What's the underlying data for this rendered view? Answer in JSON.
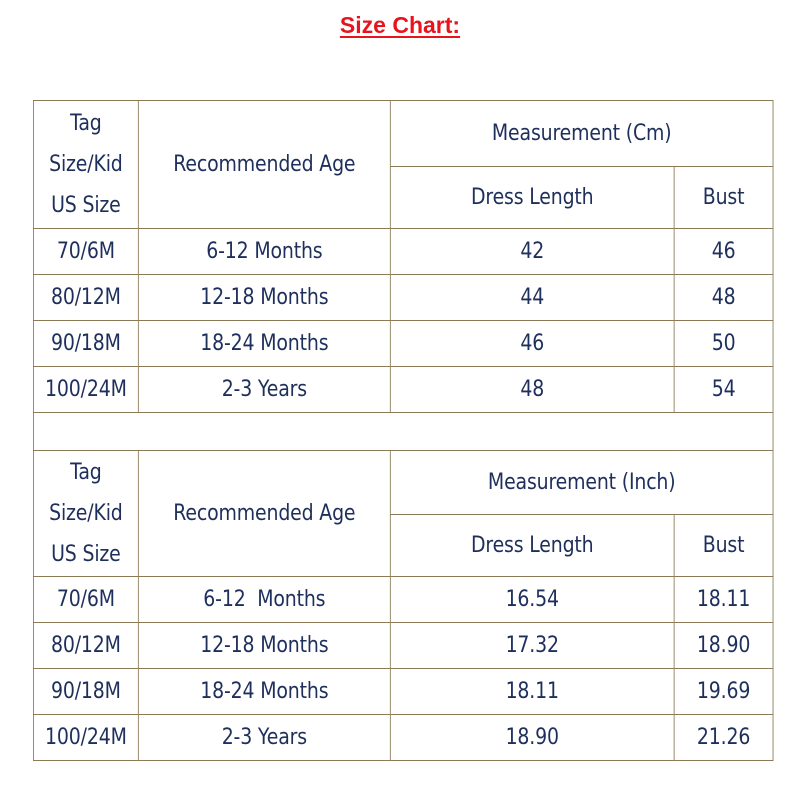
{
  "title": "Size Chart:",
  "colors": {
    "title": "#e8141c",
    "text": "#1f2f5c",
    "border": "#8b7a55"
  },
  "cm_table": {
    "header": {
      "tag_line1": "Tag",
      "tag_line2": "Size/Kid",
      "tag_line3": "US Size",
      "age": "Recommended Age",
      "measurement": "Measurement (Cm)",
      "dress_length": "Dress Length",
      "bust": "Bust"
    },
    "rows": [
      {
        "tag": "70/6M",
        "age": "6-12 Months",
        "dress_length": "42",
        "bust": "46"
      },
      {
        "tag": "80/12M",
        "age": "12-18 Months",
        "dress_length": "44",
        "bust": "48"
      },
      {
        "tag": "90/18M",
        "age": "18-24 Months",
        "dress_length": "46",
        "bust": "50"
      },
      {
        "tag": "100/24M",
        "age": "2-3 Years",
        "dress_length": "48",
        "bust": "54"
      }
    ]
  },
  "inch_table": {
    "header": {
      "tag_line1": "Tag",
      "tag_line2": "Size/Kid",
      "tag_line3": "US Size",
      "age": "Recommended Age",
      "measurement": "Measurement (Inch)",
      "dress_length": "Dress Length",
      "bust": "Bust"
    },
    "rows": [
      {
        "tag": "70/6M",
        "age": "6-12  Months",
        "dress_length": "16.54",
        "bust": "18.11"
      },
      {
        "tag": "80/12M",
        "age": "12-18 Months",
        "dress_length": "17.32",
        "bust": "18.90"
      },
      {
        "tag": "90/18M",
        "age": "18-24 Months",
        "dress_length": "18.11",
        "bust": "19.69"
      },
      {
        "tag": "100/24M",
        "age": "2-3 Years",
        "dress_length": "18.90",
        "bust": "21.26"
      }
    ]
  }
}
